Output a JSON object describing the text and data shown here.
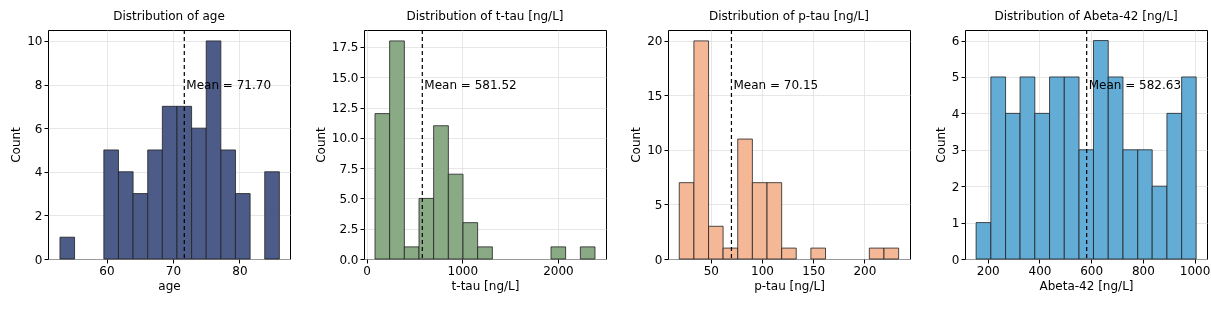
{
  "chart_data": [
    {
      "type": "histogram",
      "title": "Distribution of age",
      "xlabel": "age",
      "ylabel": "Count",
      "color": "#4c5b88",
      "grid": true,
      "bins": [
        53,
        55.2,
        57.4,
        59.6,
        61.8,
        64,
        66.2,
        68.4,
        70.6,
        72.8,
        75,
        77.2,
        79.4,
        81.6,
        83.8,
        86
      ],
      "values": [
        1,
        0,
        0,
        5,
        4,
        3,
        5,
        7,
        7,
        6,
        10,
        5,
        3,
        0,
        4
      ],
      "xlim": [
        51.2,
        87.6
      ],
      "xticks": [
        60,
        70,
        80
      ],
      "ylim": [
        0,
        10.5
      ],
      "yticks": [
        0,
        2,
        4,
        6,
        8,
        10
      ],
      "ref_lines": [
        {
          "axis": "x",
          "value": 71.7,
          "label": "Mean = 71.70",
          "color": "#000000",
          "line_style": "dashed"
        }
      ]
    },
    {
      "type": "histogram",
      "title": "Distribution of t-tau [ng/L]",
      "xlabel": "t-tau [ng/L]",
      "ylabel": "Count",
      "color": "#8aaa86",
      "grid": true,
      "bins": [
        87,
        240,
        394,
        547,
        700,
        854,
        1007,
        1160,
        1314,
        1467,
        1620,
        1774,
        1927,
        2080,
        2234,
        2387
      ],
      "values": [
        12,
        18,
        1,
        5,
        11,
        7,
        3,
        1,
        0,
        0,
        0,
        0,
        1,
        0,
        1
      ],
      "xlim": [
        -28,
        2502
      ],
      "xticks": [
        0,
        1000,
        2000
      ],
      "ylim": [
        0,
        18.9
      ],
      "yticks": [
        {
          "value": 0,
          "label": "0.0"
        },
        2.5,
        {
          "value": 5,
          "label": "5.0"
        },
        7.5,
        {
          "value": 10,
          "label": "10.0"
        },
        12.5,
        {
          "value": 15,
          "label": "15.0"
        },
        17.5
      ],
      "ref_lines": [
        {
          "axis": "x",
          "value": 581.52,
          "label": "Mean = 581.52",
          "color": "#000000",
          "line_style": "dashed"
        }
      ]
    },
    {
      "type": "histogram",
      "title": "Distribution of p-tau [ng/L]",
      "xlabel": "p-tau [ng/L]",
      "ylabel": "Count",
      "color": "#f4b896",
      "grid": true,
      "bins": [
        19.2,
        33.5,
        47.8,
        62,
        76.3,
        90.6,
        104.9,
        119.2,
        133.4,
        147.7,
        162,
        176.3,
        190.6,
        204.8,
        219.1,
        233.4
      ],
      "values": [
        7,
        20,
        3,
        1,
        11,
        7,
        7,
        1,
        0,
        1,
        0,
        0,
        0,
        1,
        1
      ],
      "xlim": [
        8.2,
        244.5
      ],
      "xticks": [
        50,
        100,
        150,
        200
      ],
      "ylim": [
        0,
        21
      ],
      "yticks": [
        0,
        5,
        10,
        15,
        20
      ],
      "ref_lines": [
        {
          "axis": "x",
          "value": 70.15,
          "label": "Mean = 70.15",
          "color": "#000000",
          "line_style": "dashed"
        }
      ]
    },
    {
      "type": "histogram",
      "title": "Distribution of Abeta-42 [ng/L]",
      "xlabel": "Abeta-42 [ng/L]",
      "ylabel": "Count",
      "color": "#62acd6",
      "grid": true,
      "bins": [
        155,
        212,
        269,
        325,
        382,
        439,
        496,
        553,
        609,
        666,
        723,
        780,
        836,
        893,
        950,
        1006
      ],
      "values": [
        1,
        5,
        4,
        5,
        4,
        5,
        5,
        3,
        6,
        5,
        3,
        3,
        2,
        4,
        5
      ],
      "xlim": [
        112,
        1048
      ],
      "xticks": [
        200,
        400,
        600,
        800,
        1000
      ],
      "ylim": [
        0,
        6.29
      ],
      "yticks": [
        0,
        1,
        2,
        3,
        4,
        5,
        6
      ],
      "ref_lines": [
        {
          "axis": "x",
          "value": 582.63,
          "label": "Mean = 582.63",
          "color": "#000000",
          "line_style": "dashed"
        }
      ]
    }
  ]
}
